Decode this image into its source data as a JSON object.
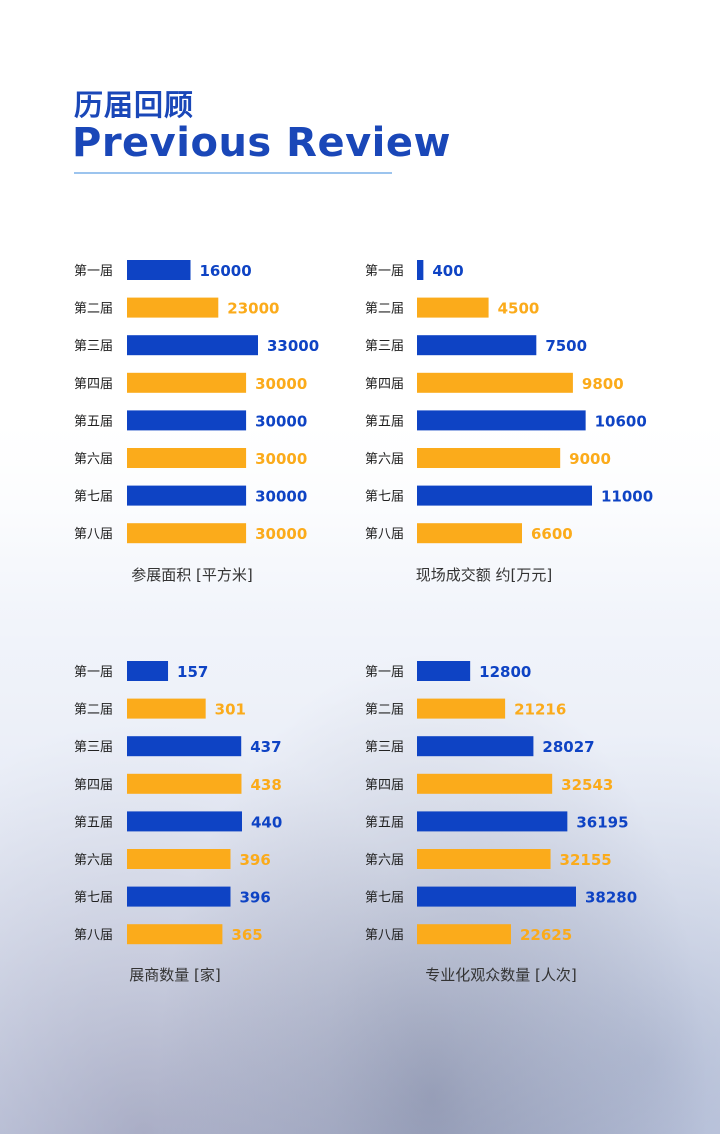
{
  "header": {
    "title_cn": "历届回顾",
    "title_en": "Previous Review"
  },
  "colors": {
    "blue": "#0e43c4",
    "orange": "#fbab1b"
  },
  "chart_data": [
    {
      "type": "bar",
      "orientation": "horizontal",
      "title": "参展面积 [平方米]",
      "categories": [
        "第一届",
        "第二届",
        "第三届",
        "第四届",
        "第五届",
        "第六届",
        "第七届",
        "第八届"
      ],
      "values": [
        16000,
        23000,
        33000,
        30000,
        30000,
        30000,
        30000,
        30000
      ],
      "xlim": [
        0,
        33000
      ]
    },
    {
      "type": "bar",
      "orientation": "horizontal",
      "title": "现场成交额 约[万元]",
      "categories": [
        "第一届",
        "第二届",
        "第三届",
        "第四届",
        "第五届",
        "第六届",
        "第七届",
        "第八届"
      ],
      "values": [
        400,
        4500,
        7500,
        9800,
        10600,
        9000,
        11000,
        6600
      ],
      "xlim": [
        0,
        11000
      ]
    },
    {
      "type": "bar",
      "orientation": "horizontal",
      "title": "展商数量 [家]",
      "categories": [
        "第一届",
        "第二届",
        "第三届",
        "第四届",
        "第五届",
        "第六届",
        "第七届",
        "第八届"
      ],
      "values": [
        157,
        301,
        437,
        438,
        440,
        396,
        396,
        365
      ],
      "xlim": [
        0,
        440
      ]
    },
    {
      "type": "bar",
      "orientation": "horizontal",
      "title": "专业化观众数量 [人次]",
      "categories": [
        "第一届",
        "第二届",
        "第三届",
        "第四届",
        "第五届",
        "第六届",
        "第七届",
        "第八届"
      ],
      "values": [
        12800,
        21216,
        28027,
        32543,
        36195,
        32155,
        38280,
        22625
      ],
      "xlim": [
        0,
        38280
      ]
    }
  ]
}
